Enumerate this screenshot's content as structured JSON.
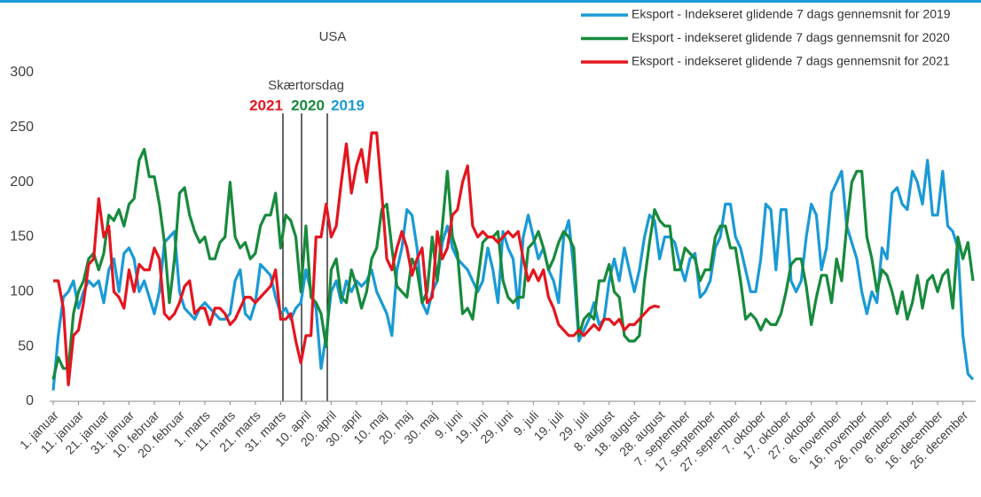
{
  "chart_data": {
    "type": "line",
    "title": "USA",
    "annotation": {
      "text": "Skærtorsdag",
      "years": [
        {
          "label": "2021",
          "color": "#e3161f"
        },
        {
          "label": "2020",
          "color": "#178a3c"
        },
        {
          "label": "2019",
          "color": "#1a9ad6"
        }
      ]
    },
    "categories": [
      "1. januar",
      null,
      null,
      null,
      null,
      "11. januar",
      null,
      null,
      null,
      null,
      "21. januar",
      null,
      null,
      null,
      null,
      "31. januar",
      null,
      null,
      null,
      null,
      "10. februar",
      null,
      null,
      null,
      null,
      "20. februar",
      null,
      null,
      null,
      null,
      "1. marts",
      null,
      null,
      null,
      null,
      "11. marts",
      null,
      null,
      null,
      null,
      "21. marts",
      null,
      null,
      null,
      null,
      "31. marts",
      null,
      null,
      null,
      null,
      "10. april",
      null,
      null,
      null,
      null,
      "20. april",
      null,
      null,
      null,
      null,
      "30. april",
      null,
      null,
      null,
      null,
      "10. maj",
      null,
      null,
      null,
      null,
      "20. maj",
      null,
      null,
      null,
      null,
      "30. maj",
      null,
      null,
      null,
      null,
      "9. juni",
      null,
      null,
      null,
      null,
      "19. juni",
      null,
      null,
      null,
      null,
      "29. juni",
      null,
      null,
      null,
      null,
      "9. juli",
      null,
      null,
      null,
      null,
      "19. juli",
      null,
      null,
      null,
      null,
      "29. juli",
      null,
      null,
      null,
      null,
      "8. august",
      null,
      null,
      null,
      null,
      "18. august",
      null,
      null,
      null,
      null,
      "28. august",
      null,
      null,
      null,
      null,
      "7. september",
      null,
      null,
      null,
      null,
      "17. september",
      null,
      null,
      null,
      null,
      "27. september",
      null,
      null,
      null,
      null,
      "7. oktober",
      null,
      null,
      null,
      null,
      "17. oktober",
      null,
      null,
      null,
      null,
      "27. oktober",
      null,
      null,
      null,
      null,
      "6. november",
      null,
      null,
      null,
      null,
      "16. november",
      null,
      null,
      null,
      null,
      "26. november",
      null,
      null,
      null,
      null,
      "6. december",
      null,
      null,
      null,
      null,
      "16. december",
      null,
      null,
      null,
      null,
      "26. december",
      null,
      null
    ],
    "series": [
      {
        "name": "Eksport - Indekseret glidende 7 dags gennemsnit for 2019",
        "color": "#1a9ad6",
        "values": [
          10,
          60,
          95,
          100,
          110,
          85,
          100,
          110,
          105,
          110,
          90,
          120,
          130,
          100,
          135,
          140,
          130,
          100,
          110,
          95,
          80,
          100,
          145,
          150,
          155,
          100,
          85,
          80,
          75,
          85,
          90,
          85,
          80,
          75,
          75,
          80,
          110,
          120,
          80,
          75,
          90,
          125,
          120,
          115,
          95,
          80,
          85,
          75,
          85,
          90,
          120,
          100,
          85,
          30,
          60,
          100,
          110,
          90,
          110,
          100,
          110,
          105,
          110,
          120,
          100,
          90,
          80,
          60,
          120,
          140,
          175,
          170,
          140,
          90,
          80,
          100,
          110,
          145,
          160,
          140,
          130,
          125,
          120,
          110,
          100,
          110,
          140,
          120,
          90,
          155,
          140,
          130,
          85,
          150,
          170,
          150,
          130,
          140,
          120,
          110,
          90,
          150,
          165,
          120,
          55,
          65,
          75,
          90,
          70,
          75,
          110,
          130,
          110,
          140,
          120,
          100,
          120,
          150,
          170,
          165,
          130,
          150,
          150,
          145,
          125,
          110,
          130,
          135,
          95,
          100,
          110,
          140,
          150,
          180,
          180,
          150,
          140,
          120,
          100,
          100,
          130,
          180,
          175,
          120,
          175,
          175,
          110,
          100,
          110,
          150,
          180,
          170,
          120,
          140,
          190,
          200,
          210,
          160,
          145,
          130,
          100,
          80,
          100,
          90,
          140,
          130,
          190,
          195,
          180,
          175,
          210,
          200,
          180,
          220,
          170,
          170,
          210,
          160,
          155,
          140,
          60,
          25,
          20
        ]
      },
      {
        "name": "Eksport - indekseret glidende 7 dags gennemsnit for 2020",
        "color": "#178a3c",
        "values": [
          20,
          40,
          30,
          30,
          80,
          100,
          110,
          130,
          135,
          120,
          135,
          170,
          165,
          175,
          160,
          180,
          185,
          220,
          230,
          205,
          205,
          180,
          145,
          90,
          130,
          190,
          195,
          170,
          155,
          145,
          150,
          130,
          130,
          145,
          150,
          200,
          150,
          140,
          145,
          130,
          135,
          160,
          170,
          170,
          190,
          140,
          170,
          165,
          150,
          100,
          160,
          95,
          90,
          80,
          50,
          120,
          130,
          95,
          90,
          120,
          105,
          85,
          100,
          130,
          140,
          175,
          180,
          140,
          105,
          100,
          95,
          130,
          120,
          90,
          100,
          150,
          110,
          160,
          210,
          150,
          135,
          80,
          85,
          75,
          110,
          145,
          150,
          150,
          155,
          110,
          95,
          90,
          95,
          95,
          140,
          145,
          155,
          140,
          120,
          130,
          145,
          155,
          150,
          140,
          60,
          75,
          80,
          75,
          110,
          110,
          125,
          100,
          95,
          60,
          55,
          55,
          60,
          110,
          145,
          175,
          165,
          160,
          160,
          120,
          120,
          140,
          135,
          130,
          110,
          120,
          120,
          150,
          160,
          160,
          140,
          140,
          110,
          75,
          80,
          75,
          65,
          75,
          70,
          70,
          80,
          100,
          125,
          130,
          130,
          105,
          70,
          95,
          115,
          115,
          90,
          130,
          110,
          160,
          200,
          210,
          210,
          150,
          130,
          100,
          120,
          115,
          100,
          80,
          100,
          75,
          90,
          115,
          85,
          110,
          115,
          100,
          115,
          120,
          85,
          150,
          130,
          145,
          110
        ]
      },
      {
        "name": "Eksport - indekseret glidende 7 dags gennemsnit for 2021",
        "color": "#e3161f",
        "values": [
          110,
          110,
          85,
          15,
          60,
          65,
          90,
          125,
          130,
          185,
          150,
          160,
          100,
          95,
          85,
          120,
          100,
          125,
          120,
          120,
          140,
          130,
          80,
          75,
          80,
          90,
          105,
          110,
          80,
          85,
          85,
          70,
          85,
          85,
          80,
          70,
          75,
          85,
          95,
          95,
          90,
          95,
          100,
          105,
          120,
          75,
          75,
          80,
          55,
          35,
          60,
          60,
          150,
          150,
          180,
          150,
          160,
          200,
          235,
          190,
          215,
          230,
          200,
          245,
          245,
          190,
          130,
          120,
          140,
          155,
          140,
          115,
          130,
          140,
          90,
          95,
          155,
          130,
          140,
          170,
          175,
          200,
          215,
          160,
          150,
          155,
          150,
          150,
          145,
          150,
          155,
          150,
          155,
          130,
          110,
          120,
          110,
          120,
          95,
          85,
          70,
          65,
          60,
          60,
          65,
          60,
          65,
          70,
          65,
          75,
          75,
          70,
          75,
          65,
          70,
          70,
          75,
          80,
          85,
          87,
          86,
          null,
          null,
          null,
          null,
          null,
          null,
          null,
          null,
          null,
          null,
          null,
          null,
          null,
          null,
          null,
          null,
          null,
          null,
          null,
          null,
          null,
          null,
          null,
          null,
          null,
          null,
          null,
          null,
          null,
          null,
          null,
          null,
          null,
          null,
          null,
          null,
          null,
          null,
          null,
          null,
          null,
          null,
          null,
          null,
          null,
          null,
          null,
          null,
          null,
          null,
          null,
          null,
          null,
          null,
          null,
          null,
          null,
          null,
          null,
          null,
          null,
          null
        ]
      }
    ],
    "ylim": [
      0,
      300
    ],
    "yticks": [
      0,
      50,
      100,
      150,
      200,
      250,
      300
    ],
    "grid": false,
    "legend": "top-right"
  }
}
